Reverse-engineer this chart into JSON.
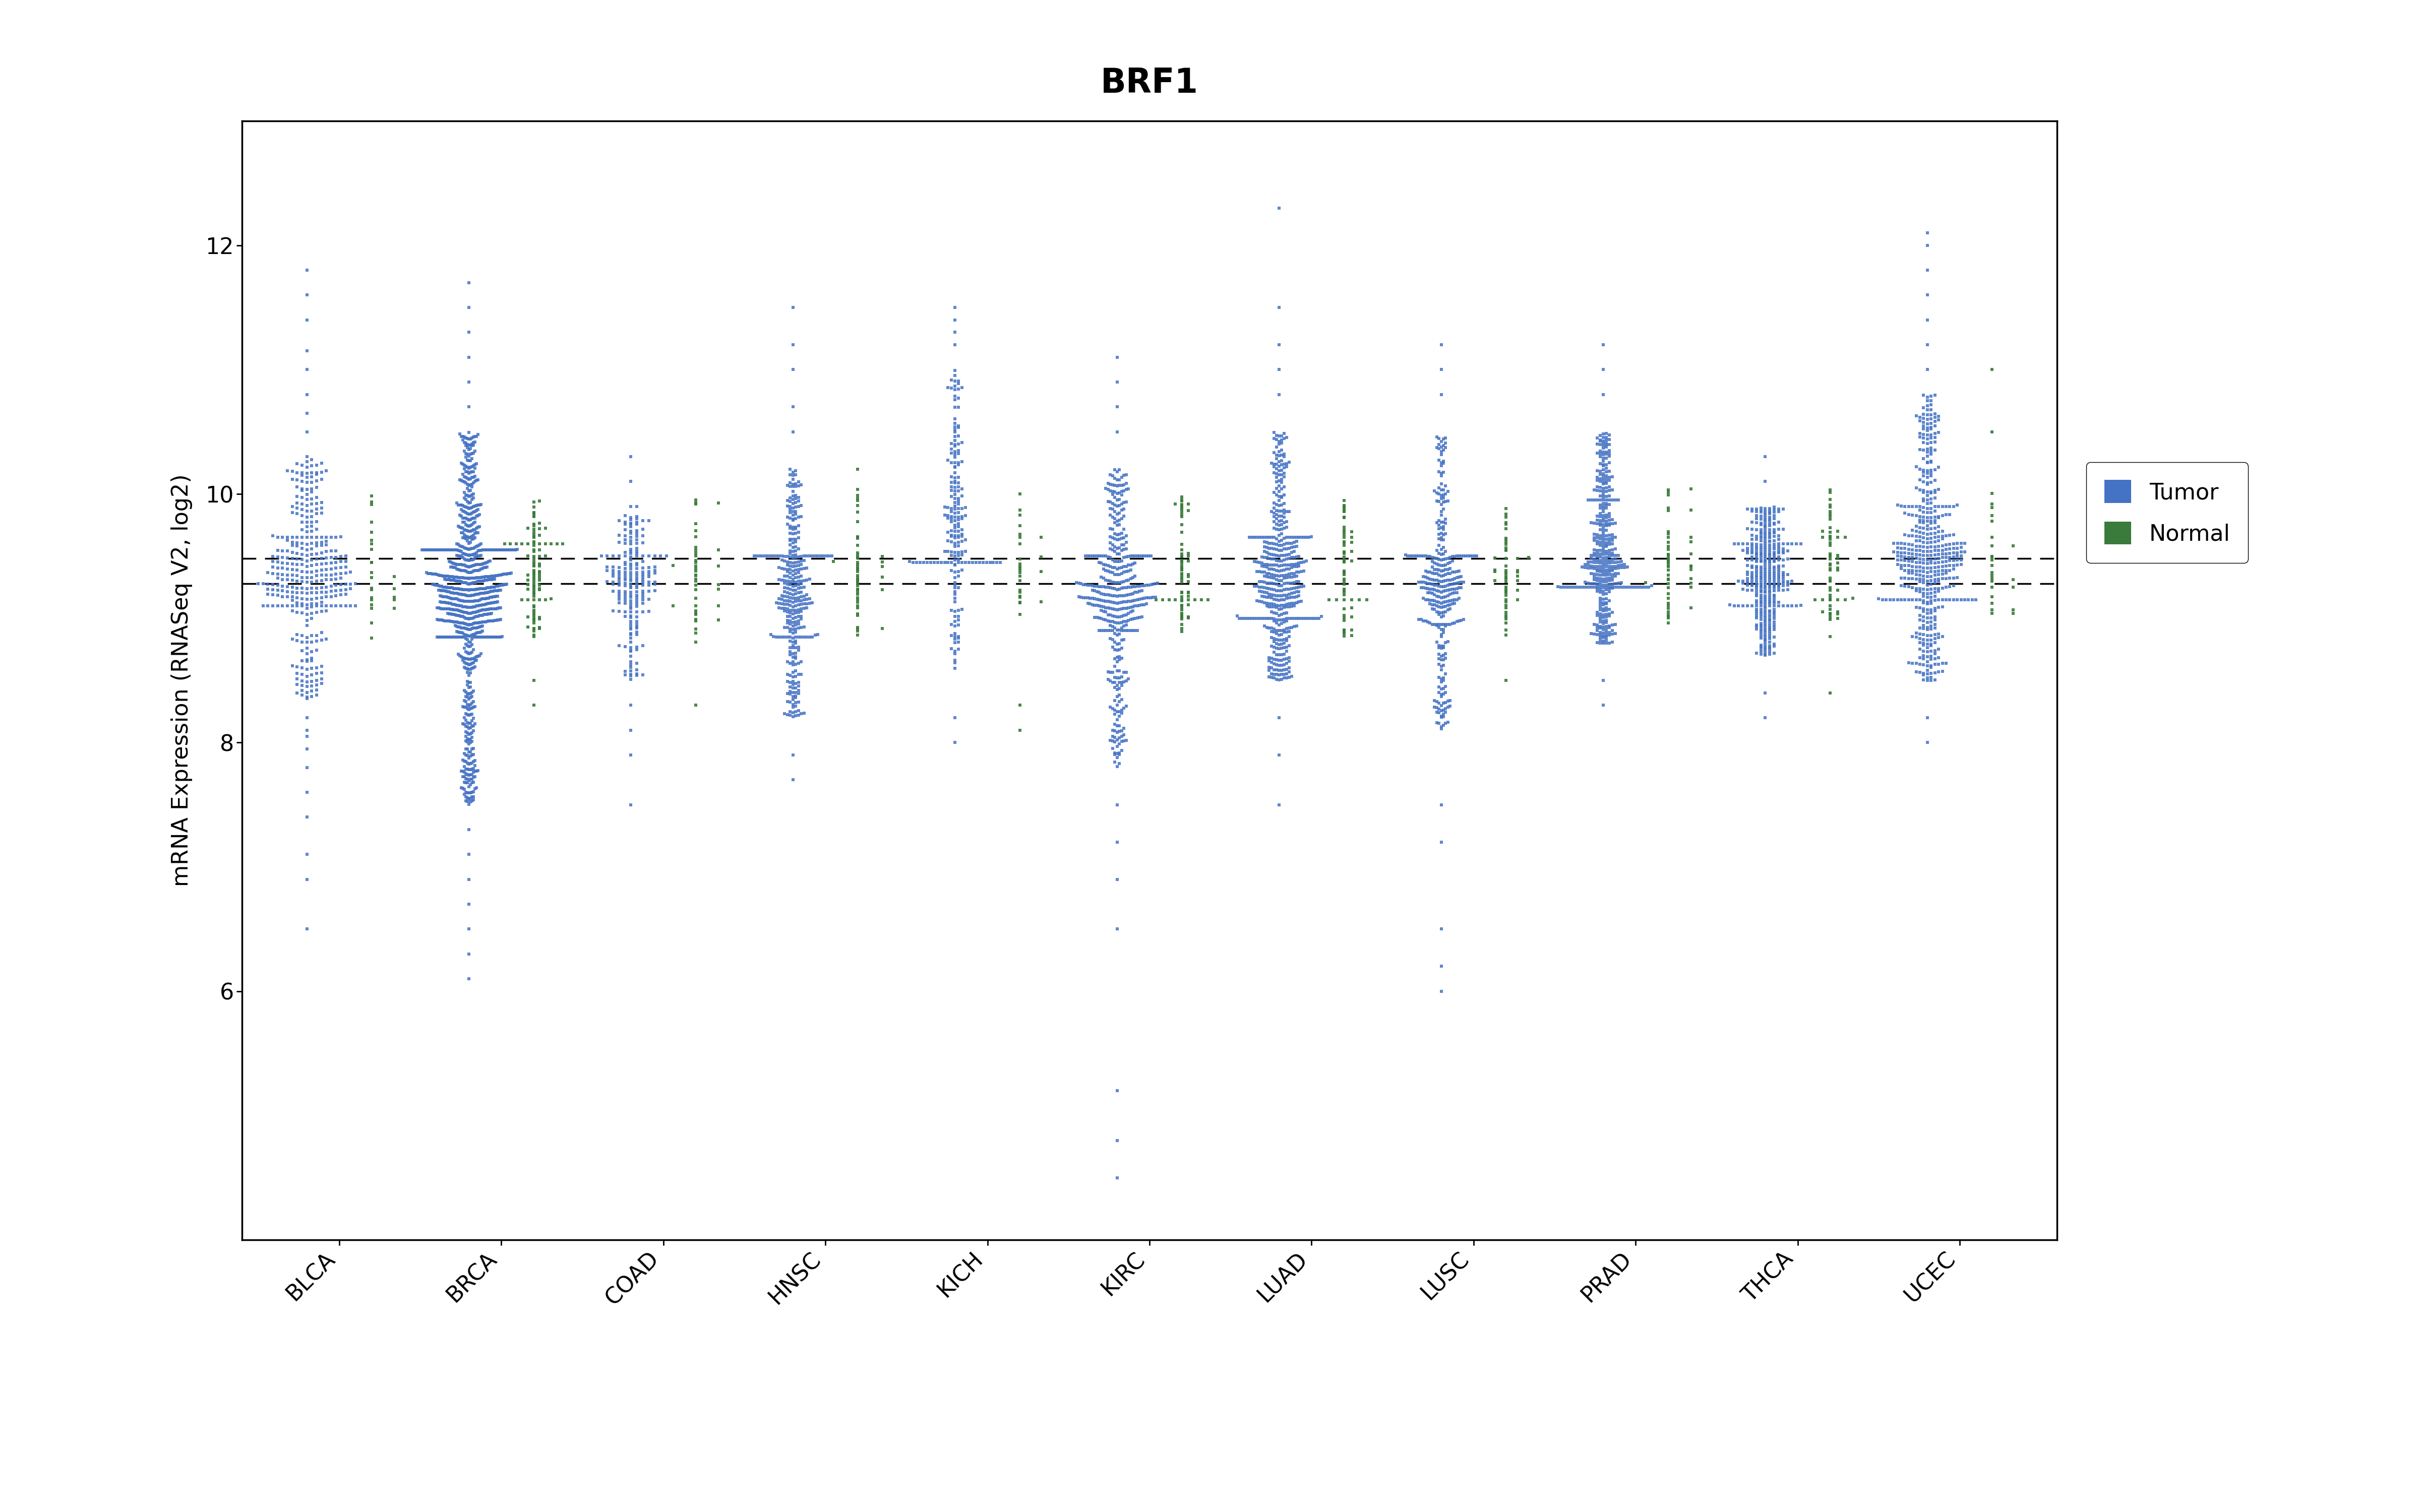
{
  "title": "BRF1",
  "ylabel": "mRNA Expression (RNASeq V2, log2)",
  "categories": [
    "BLCA",
    "BRCA",
    "COAD",
    "HNSC",
    "KICH",
    "KIRC",
    "LUAD",
    "LUSC",
    "PRAD",
    "THCA",
    "UCEC"
  ],
  "ylim": [
    4.0,
    13.0
  ],
  "yticks": [
    6,
    8,
    10,
    12
  ],
  "tumor_color": "#4472c4",
  "normal_color": "#3a7a3a",
  "hline1": 9.28,
  "hline2": 9.48,
  "tumor_data": {
    "BLCA": {
      "median": 9.35,
      "q1": 9.1,
      "q3": 9.65,
      "whislo": 8.35,
      "whishi": 10.3,
      "outliers_low": [
        8.2,
        8.1,
        8.05,
        7.95,
        7.8,
        7.6,
        7.4,
        7.1,
        6.9,
        6.5
      ],
      "outliers_high": [
        10.5,
        10.65,
        10.8,
        11.0,
        11.15,
        11.4,
        11.6,
        11.8
      ],
      "n": 350,
      "spread": 0.3
    },
    "BRCA": {
      "median": 9.2,
      "q1": 8.85,
      "q3": 9.55,
      "whislo": 7.5,
      "whishi": 10.5,
      "outliers_low": [
        7.3,
        7.1,
        6.9,
        6.7,
        6.5,
        6.3,
        6.1
      ],
      "outliers_high": [
        10.7,
        10.9,
        11.1,
        11.3,
        11.5,
        11.7
      ],
      "n": 1000,
      "spread": 0.3
    },
    "COAD": {
      "median": 9.3,
      "q1": 9.05,
      "q3": 9.5,
      "whislo": 8.5,
      "whishi": 9.9,
      "outliers_low": [
        8.3,
        8.1,
        7.9,
        7.5
      ],
      "outliers_high": [
        10.1,
        10.3
      ],
      "n": 200,
      "spread": 0.22
    },
    "HNSC": {
      "median": 9.2,
      "q1": 8.85,
      "q3": 9.5,
      "whislo": 8.2,
      "whishi": 10.2,
      "outliers_low": [
        7.9,
        7.7
      ],
      "outliers_high": [
        10.5,
        10.7,
        11.0,
        11.2,
        11.5
      ],
      "n": 350,
      "spread": 0.24
    },
    "KICH": {
      "median": 9.7,
      "q1": 9.45,
      "q3": 10.25,
      "whislo": 8.5,
      "whishi": 11.0,
      "outliers_low": [
        8.2,
        8.0
      ],
      "outliers_high": [
        11.2,
        11.3,
        11.4,
        11.5
      ],
      "n": 200,
      "spread": 0.28
    },
    "KIRC": {
      "median": 9.2,
      "q1": 8.9,
      "q3": 9.5,
      "whislo": 7.8,
      "whishi": 10.2,
      "outliers_low": [
        7.5,
        7.2,
        6.9,
        6.5,
        5.2,
        4.8,
        4.5
      ],
      "outliers_high": [
        10.5,
        10.7,
        10.9,
        11.1
      ],
      "n": 450,
      "spread": 0.25
    },
    "LUAD": {
      "median": 9.3,
      "q1": 9.0,
      "q3": 9.65,
      "whislo": 8.5,
      "whishi": 10.5,
      "outliers_low": [
        8.2,
        7.9,
        7.5
      ],
      "outliers_high": [
        10.8,
        11.0,
        11.2,
        11.5,
        12.3
      ],
      "n": 500,
      "spread": 0.26
    },
    "LUSC": {
      "median": 9.25,
      "q1": 8.95,
      "q3": 9.5,
      "whislo": 8.1,
      "whishi": 10.5,
      "outliers_low": [
        7.5,
        7.2,
        6.5,
        6.2,
        6.0
      ],
      "outliers_high": [
        10.8,
        11.0,
        11.2
      ],
      "n": 350,
      "spread": 0.22
    },
    "PRAD": {
      "median": 9.5,
      "q1": 9.25,
      "q3": 9.95,
      "whislo": 8.8,
      "whishi": 10.5,
      "outliers_low": [
        8.5,
        8.3
      ],
      "outliers_high": [
        10.8,
        11.0,
        11.2
      ],
      "n": 400,
      "spread": 0.3
    },
    "THCA": {
      "median": 9.35,
      "q1": 9.1,
      "q3": 9.6,
      "whislo": 8.7,
      "whishi": 9.9,
      "outliers_low": [
        8.4,
        8.2
      ],
      "outliers_high": [
        10.1,
        10.3
      ],
      "n": 400,
      "spread": 0.22
    },
    "UCEC": {
      "median": 9.5,
      "q1": 9.15,
      "q3": 9.9,
      "whislo": 8.5,
      "whishi": 10.8,
      "outliers_low": [
        8.2,
        8.0
      ],
      "outliers_high": [
        11.0,
        11.2,
        11.4,
        11.6,
        11.8,
        12.0,
        12.1
      ],
      "n": 500,
      "spread": 0.3
    }
  },
  "normal_data": {
    "BLCA": {
      "median": 9.35,
      "q1": 9.15,
      "q3": 9.6,
      "whislo": 8.75,
      "whishi": 10.05,
      "n": 25,
      "spread": 0.14
    },
    "BRCA": {
      "median": 9.35,
      "q1": 9.15,
      "q3": 9.6,
      "whislo": 8.8,
      "whishi": 9.95,
      "outliers_low": [
        8.5,
        8.3
      ],
      "n": 100,
      "spread": 0.18
    },
    "COAD": {
      "median": 9.3,
      "q1": 9.1,
      "q3": 9.55,
      "whislo": 8.75,
      "whishi": 9.95,
      "outliers_low": [
        8.3
      ],
      "n": 40,
      "spread": 0.14
    },
    "HNSC": {
      "median": 9.35,
      "q1": 9.15,
      "q3": 9.6,
      "whislo": 8.85,
      "whishi": 10.05,
      "outliers_high": [
        10.2
      ],
      "n": 50,
      "spread": 0.15
    },
    "KICH": {
      "median": 9.4,
      "q1": 9.2,
      "q3": 9.65,
      "whislo": 8.95,
      "whishi": 9.95,
      "outliers_low": [
        8.3,
        8.1
      ],
      "outliers_high": [
        10.0
      ],
      "n": 25,
      "spread": 0.13
    },
    "KIRC": {
      "median": 9.35,
      "q1": 9.15,
      "q3": 9.65,
      "whislo": 8.85,
      "whishi": 10.05,
      "n": 70,
      "spread": 0.16
    },
    "LUAD": {
      "median": 9.4,
      "q1": 9.15,
      "q3": 9.65,
      "whislo": 8.85,
      "whishi": 9.95,
      "n": 60,
      "spread": 0.14
    },
    "LUSC": {
      "median": 9.35,
      "q1": 9.15,
      "q3": 9.55,
      "whislo": 8.85,
      "whishi": 9.9,
      "outliers_low": [
        8.5
      ],
      "n": 50,
      "spread": 0.14
    },
    "PRAD": {
      "median": 9.4,
      "q1": 9.2,
      "q3": 9.65,
      "whislo": 8.95,
      "whishi": 10.05,
      "n": 50,
      "spread": 0.14
    },
    "THCA": {
      "median": 9.4,
      "q1": 9.15,
      "q3": 9.65,
      "whislo": 8.85,
      "whishi": 10.05,
      "outliers_low": [
        8.4
      ],
      "n": 60,
      "spread": 0.14
    },
    "UCEC": {
      "median": 9.45,
      "q1": 9.25,
      "q3": 9.75,
      "whislo": 8.95,
      "whishi": 10.15,
      "outliers_high": [
        10.5,
        11.0
      ],
      "n": 25,
      "spread": 0.13
    }
  }
}
